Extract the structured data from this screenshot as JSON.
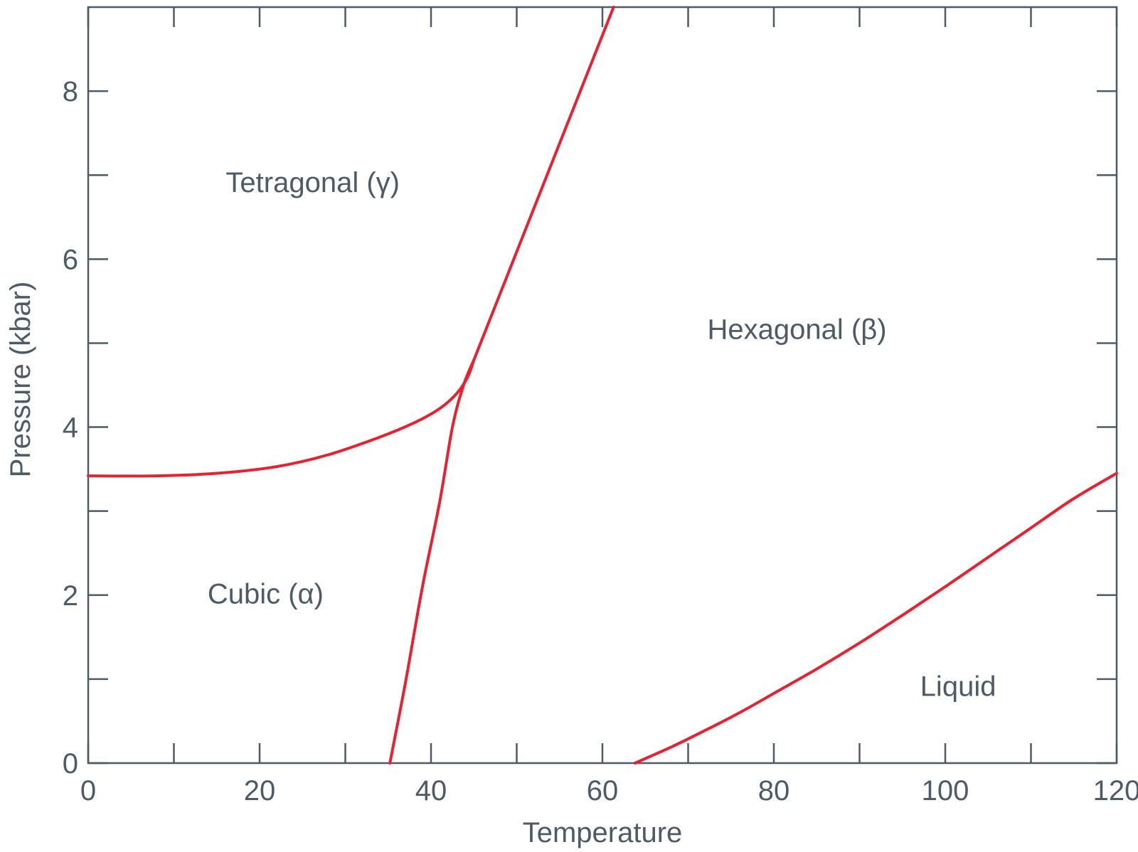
{
  "chart_data": {
    "type": "line",
    "xlabel": "Temperature",
    "ylabel": "Pressure (kbar)",
    "xlim": [
      0,
      120
    ],
    "ylim": [
      0,
      9
    ],
    "x_ticks": [
      0,
      20,
      40,
      60,
      80,
      100,
      120
    ],
    "x_minor_ticks": [
      10,
      30,
      50,
      70,
      90,
      110
    ],
    "y_ticks": [
      0,
      2,
      4,
      6,
      8
    ],
    "y_minor_ticks": [
      1,
      3,
      5,
      7
    ],
    "grid": false,
    "line_color": "#e8202f",
    "axis_color": "#4d5b66",
    "series": [
      {
        "points": [
          [
            0,
            3.42
          ],
          [
            8,
            3.42
          ],
          [
            15,
            3.45
          ],
          [
            22,
            3.53
          ],
          [
            28,
            3.67
          ],
          [
            34,
            3.88
          ],
          [
            38,
            4.05
          ],
          [
            41,
            4.22
          ],
          [
            43,
            4.4
          ],
          [
            44.3,
            4.6
          ],
          [
            45,
            4.8
          ]
        ]
      },
      {
        "points": [
          [
            35.2,
            0
          ],
          [
            37,
            0.95
          ],
          [
            39,
            2.1
          ],
          [
            41,
            3.1
          ],
          [
            42.5,
            4.0
          ],
          [
            43.8,
            4.5
          ],
          [
            45,
            4.8
          ]
        ]
      },
      {
        "points": [
          [
            45,
            4.8
          ],
          [
            61.3,
            9.0
          ]
        ]
      },
      {
        "points": [
          [
            63.8,
            0
          ],
          [
            68,
            0.19
          ],
          [
            72,
            0.39
          ],
          [
            76,
            0.6
          ],
          [
            80,
            0.83
          ],
          [
            85,
            1.12
          ],
          [
            90,
            1.43
          ],
          [
            95,
            1.76
          ],
          [
            100,
            2.1
          ],
          [
            105,
            2.45
          ],
          [
            110,
            2.8
          ],
          [
            115,
            3.15
          ],
          [
            120,
            3.45
          ]
        ]
      }
    ],
    "annotations": [
      {
        "text": "Tetragonal (γ)",
        "x": 26.2,
        "y": 6.8
      },
      {
        "text": "Hexagonal (β)",
        "x": 82.7,
        "y": 5.05
      },
      {
        "text": "Cubic (α)",
        "x": 20.7,
        "y": 1.9
      },
      {
        "text": "Liquid",
        "x": 101.5,
        "y": 0.8
      }
    ]
  }
}
